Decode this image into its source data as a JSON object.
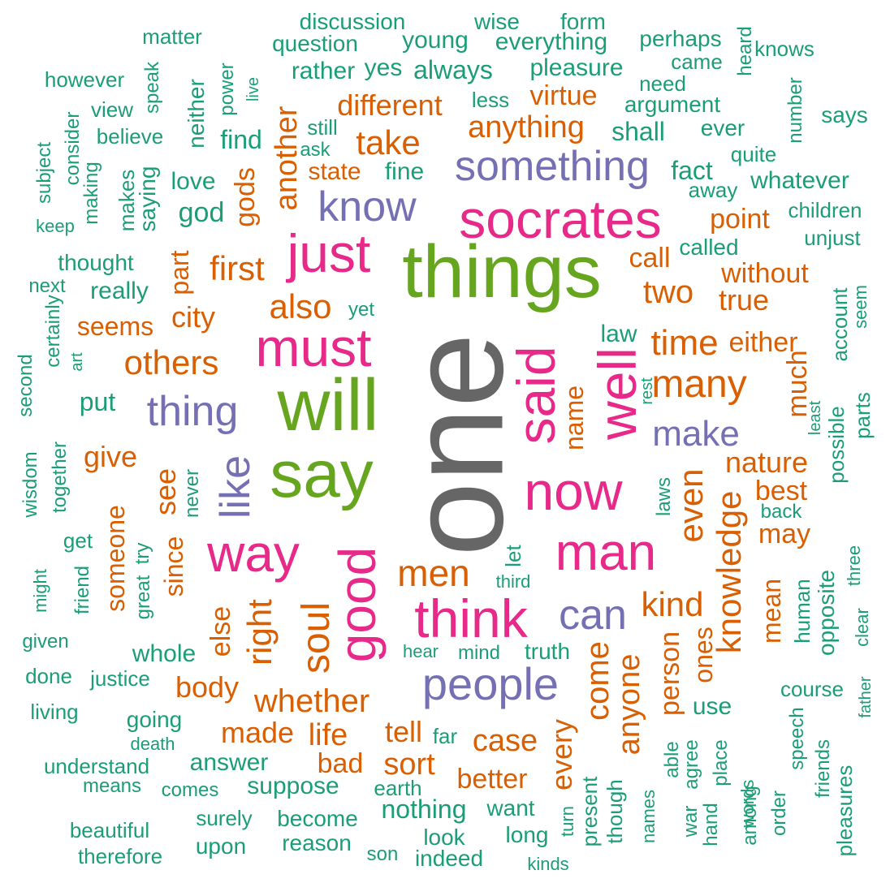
{
  "palette": {
    "gray": "#666666",
    "green": "#66a61e",
    "pink": "#e7298a",
    "purple": "#7570b3",
    "orange": "#d95f02",
    "teal": "#1b9e77"
  },
  "words": [
    {
      "text": "one",
      "color": "gray"
    },
    {
      "text": "things",
      "color": "green"
    },
    {
      "text": "will",
      "color": "green"
    },
    {
      "text": "say",
      "color": "green"
    },
    {
      "text": "socrates",
      "color": "pink"
    },
    {
      "text": "must",
      "color": "pink"
    },
    {
      "text": "just",
      "color": "pink"
    },
    {
      "text": "said",
      "color": "pink"
    },
    {
      "text": "well",
      "color": "pink"
    },
    {
      "text": "now",
      "color": "pink"
    },
    {
      "text": "man",
      "color": "pink"
    },
    {
      "text": "good",
      "color": "pink"
    },
    {
      "text": "think",
      "color": "pink"
    },
    {
      "text": "way",
      "color": "pink"
    },
    {
      "text": "something",
      "color": "purple"
    },
    {
      "text": "know",
      "color": "purple"
    },
    {
      "text": "thing",
      "color": "purple"
    },
    {
      "text": "like",
      "color": "purple"
    },
    {
      "text": "make",
      "color": "purple"
    },
    {
      "text": "can",
      "color": "purple"
    },
    {
      "text": "people",
      "color": "purple"
    },
    {
      "text": "also",
      "color": "orange"
    },
    {
      "text": "others",
      "color": "orange"
    },
    {
      "text": "first",
      "color": "orange"
    },
    {
      "text": "another",
      "color": "orange"
    },
    {
      "text": "take",
      "color": "orange"
    },
    {
      "text": "different",
      "color": "orange"
    },
    {
      "text": "anything",
      "color": "orange"
    },
    {
      "text": "virtue",
      "color": "orange"
    },
    {
      "text": "state",
      "color": "orange"
    },
    {
      "text": "gods",
      "color": "orange"
    },
    {
      "text": "point",
      "color": "orange"
    },
    {
      "text": "call",
      "color": "orange"
    },
    {
      "text": "without",
      "color": "orange"
    },
    {
      "text": "two",
      "color": "orange"
    },
    {
      "text": "true",
      "color": "orange"
    },
    {
      "text": "time",
      "color": "orange"
    },
    {
      "text": "many",
      "color": "orange"
    },
    {
      "text": "either",
      "color": "orange"
    },
    {
      "text": "much",
      "color": "orange"
    },
    {
      "text": "name",
      "color": "orange"
    },
    {
      "text": "part",
      "color": "orange"
    },
    {
      "text": "city",
      "color": "orange"
    },
    {
      "text": "seems",
      "color": "orange"
    },
    {
      "text": "give",
      "color": "orange"
    },
    {
      "text": "see",
      "color": "orange"
    },
    {
      "text": "someone",
      "color": "orange"
    },
    {
      "text": "since",
      "color": "orange"
    },
    {
      "text": "else",
      "color": "orange"
    },
    {
      "text": "right",
      "color": "orange"
    },
    {
      "text": "soul",
      "color": "orange"
    },
    {
      "text": "men",
      "color": "orange"
    },
    {
      "text": "even",
      "color": "orange"
    },
    {
      "text": "nature",
      "color": "orange"
    },
    {
      "text": "best",
      "color": "orange"
    },
    {
      "text": "may",
      "color": "orange"
    },
    {
      "text": "knowledge",
      "color": "orange"
    },
    {
      "text": "kind",
      "color": "orange"
    },
    {
      "text": "mean",
      "color": "orange"
    },
    {
      "text": "ones",
      "color": "orange"
    },
    {
      "text": "person",
      "color": "orange"
    },
    {
      "text": "anyone",
      "color": "orange"
    },
    {
      "text": "come",
      "color": "orange"
    },
    {
      "text": "every",
      "color": "orange"
    },
    {
      "text": "body",
      "color": "orange"
    },
    {
      "text": "whether",
      "color": "orange"
    },
    {
      "text": "made",
      "color": "orange"
    },
    {
      "text": "life",
      "color": "orange"
    },
    {
      "text": "tell",
      "color": "orange"
    },
    {
      "text": "case",
      "color": "orange"
    },
    {
      "text": "bad",
      "color": "orange"
    },
    {
      "text": "sort",
      "color": "orange"
    },
    {
      "text": "better",
      "color": "orange"
    },
    {
      "text": "discussion",
      "color": "teal"
    },
    {
      "text": "wise",
      "color": "teal"
    },
    {
      "text": "form",
      "color": "teal"
    },
    {
      "text": "matter",
      "color": "teal"
    },
    {
      "text": "question",
      "color": "teal"
    },
    {
      "text": "young",
      "color": "teal"
    },
    {
      "text": "everything",
      "color": "teal"
    },
    {
      "text": "perhaps",
      "color": "teal"
    },
    {
      "text": "heard",
      "color": "teal"
    },
    {
      "text": "knows",
      "color": "teal"
    },
    {
      "text": "came",
      "color": "teal"
    },
    {
      "text": "however",
      "color": "teal"
    },
    {
      "text": "speak",
      "color": "teal"
    },
    {
      "text": "neither",
      "color": "teal"
    },
    {
      "text": "power",
      "color": "teal"
    },
    {
      "text": "live",
      "color": "teal"
    },
    {
      "text": "rather",
      "color": "teal"
    },
    {
      "text": "yes",
      "color": "teal"
    },
    {
      "text": "always",
      "color": "teal"
    },
    {
      "text": "pleasure",
      "color": "teal"
    },
    {
      "text": "need",
      "color": "teal"
    },
    {
      "text": "number",
      "color": "teal"
    },
    {
      "text": "says",
      "color": "teal"
    },
    {
      "text": "view",
      "color": "teal"
    },
    {
      "text": "consider",
      "color": "teal"
    },
    {
      "text": "believe",
      "color": "teal"
    },
    {
      "text": "still",
      "color": "teal"
    },
    {
      "text": "ask",
      "color": "teal"
    },
    {
      "text": "less",
      "color": "teal"
    },
    {
      "text": "argument",
      "color": "teal"
    },
    {
      "text": "ever",
      "color": "teal"
    },
    {
      "text": "quite",
      "color": "teal"
    },
    {
      "text": "subject",
      "color": "teal"
    },
    {
      "text": "making",
      "color": "teal"
    },
    {
      "text": "find",
      "color": "teal"
    },
    {
      "text": "shall",
      "color": "teal"
    },
    {
      "text": "fine",
      "color": "teal"
    },
    {
      "text": "fact",
      "color": "teal"
    },
    {
      "text": "whatever",
      "color": "teal"
    },
    {
      "text": "keep",
      "color": "teal"
    },
    {
      "text": "makes",
      "color": "teal"
    },
    {
      "text": "saying",
      "color": "teal"
    },
    {
      "text": "love",
      "color": "teal"
    },
    {
      "text": "god",
      "color": "teal"
    },
    {
      "text": "away",
      "color": "teal"
    },
    {
      "text": "children",
      "color": "teal"
    },
    {
      "text": "unjust",
      "color": "teal"
    },
    {
      "text": "called",
      "color": "teal"
    },
    {
      "text": "thought",
      "color": "teal"
    },
    {
      "text": "next",
      "color": "teal"
    },
    {
      "text": "really",
      "color": "teal"
    },
    {
      "text": "certainly",
      "color": "teal"
    },
    {
      "text": "yet",
      "color": "teal"
    },
    {
      "text": "account",
      "color": "teal"
    },
    {
      "text": "seem",
      "color": "teal"
    },
    {
      "text": "law",
      "color": "teal"
    },
    {
      "text": "second",
      "color": "teal"
    },
    {
      "text": "art",
      "color": "teal"
    },
    {
      "text": "rest",
      "color": "teal"
    },
    {
      "text": "put",
      "color": "teal"
    },
    {
      "text": "least",
      "color": "teal"
    },
    {
      "text": "possible",
      "color": "teal"
    },
    {
      "text": "parts",
      "color": "teal"
    },
    {
      "text": "wisdom",
      "color": "teal"
    },
    {
      "text": "together",
      "color": "teal"
    },
    {
      "text": "never",
      "color": "teal"
    },
    {
      "text": "laws",
      "color": "teal"
    },
    {
      "text": "back",
      "color": "teal"
    },
    {
      "text": "get",
      "color": "teal"
    },
    {
      "text": "try",
      "color": "teal"
    },
    {
      "text": "let",
      "color": "teal"
    },
    {
      "text": "third",
      "color": "teal"
    },
    {
      "text": "might",
      "color": "teal"
    },
    {
      "text": "friend",
      "color": "teal"
    },
    {
      "text": "great",
      "color": "teal"
    },
    {
      "text": "human",
      "color": "teal"
    },
    {
      "text": "opposite",
      "color": "teal"
    },
    {
      "text": "three",
      "color": "teal"
    },
    {
      "text": "clear",
      "color": "teal"
    },
    {
      "text": "given",
      "color": "teal"
    },
    {
      "text": "whole",
      "color": "teal"
    },
    {
      "text": "hear",
      "color": "teal"
    },
    {
      "text": "mind",
      "color": "teal"
    },
    {
      "text": "truth",
      "color": "teal"
    },
    {
      "text": "done",
      "color": "teal"
    },
    {
      "text": "justice",
      "color": "teal"
    },
    {
      "text": "use",
      "color": "teal"
    },
    {
      "text": "course",
      "color": "teal"
    },
    {
      "text": "father",
      "color": "teal"
    },
    {
      "text": "living",
      "color": "teal"
    },
    {
      "text": "going",
      "color": "teal"
    },
    {
      "text": "death",
      "color": "teal"
    },
    {
      "text": "far",
      "color": "teal"
    },
    {
      "text": "able",
      "color": "teal"
    },
    {
      "text": "agree",
      "color": "teal"
    },
    {
      "text": "place",
      "color": "teal"
    },
    {
      "text": "speech",
      "color": "teal"
    },
    {
      "text": "understand",
      "color": "teal"
    },
    {
      "text": "answer",
      "color": "teal"
    },
    {
      "text": "means",
      "color": "teal"
    },
    {
      "text": "comes",
      "color": "teal"
    },
    {
      "text": "suppose",
      "color": "teal"
    },
    {
      "text": "earth",
      "color": "teal"
    },
    {
      "text": "present",
      "color": "teal"
    },
    {
      "text": "though",
      "color": "teal"
    },
    {
      "text": "names",
      "color": "teal"
    },
    {
      "text": "war",
      "color": "teal"
    },
    {
      "text": "hand",
      "color": "teal"
    },
    {
      "text": "words",
      "color": "teal"
    },
    {
      "text": "among",
      "color": "teal"
    },
    {
      "text": "friends",
      "color": "teal"
    },
    {
      "text": "order",
      "color": "teal"
    },
    {
      "text": "pleasures",
      "color": "teal"
    },
    {
      "text": "beautiful",
      "color": "teal"
    },
    {
      "text": "surely",
      "color": "teal"
    },
    {
      "text": "become",
      "color": "teal"
    },
    {
      "text": "nothing",
      "color": "teal"
    },
    {
      "text": "want",
      "color": "teal"
    },
    {
      "text": "turn",
      "color": "teal"
    },
    {
      "text": "therefore",
      "color": "teal"
    },
    {
      "text": "upon",
      "color": "teal"
    },
    {
      "text": "reason",
      "color": "teal"
    },
    {
      "text": "son",
      "color": "teal"
    },
    {
      "text": "look",
      "color": "teal"
    },
    {
      "text": "long",
      "color": "teal"
    },
    {
      "text": "indeed",
      "color": "teal"
    },
    {
      "text": "kinds",
      "color": "teal"
    }
  ]
}
